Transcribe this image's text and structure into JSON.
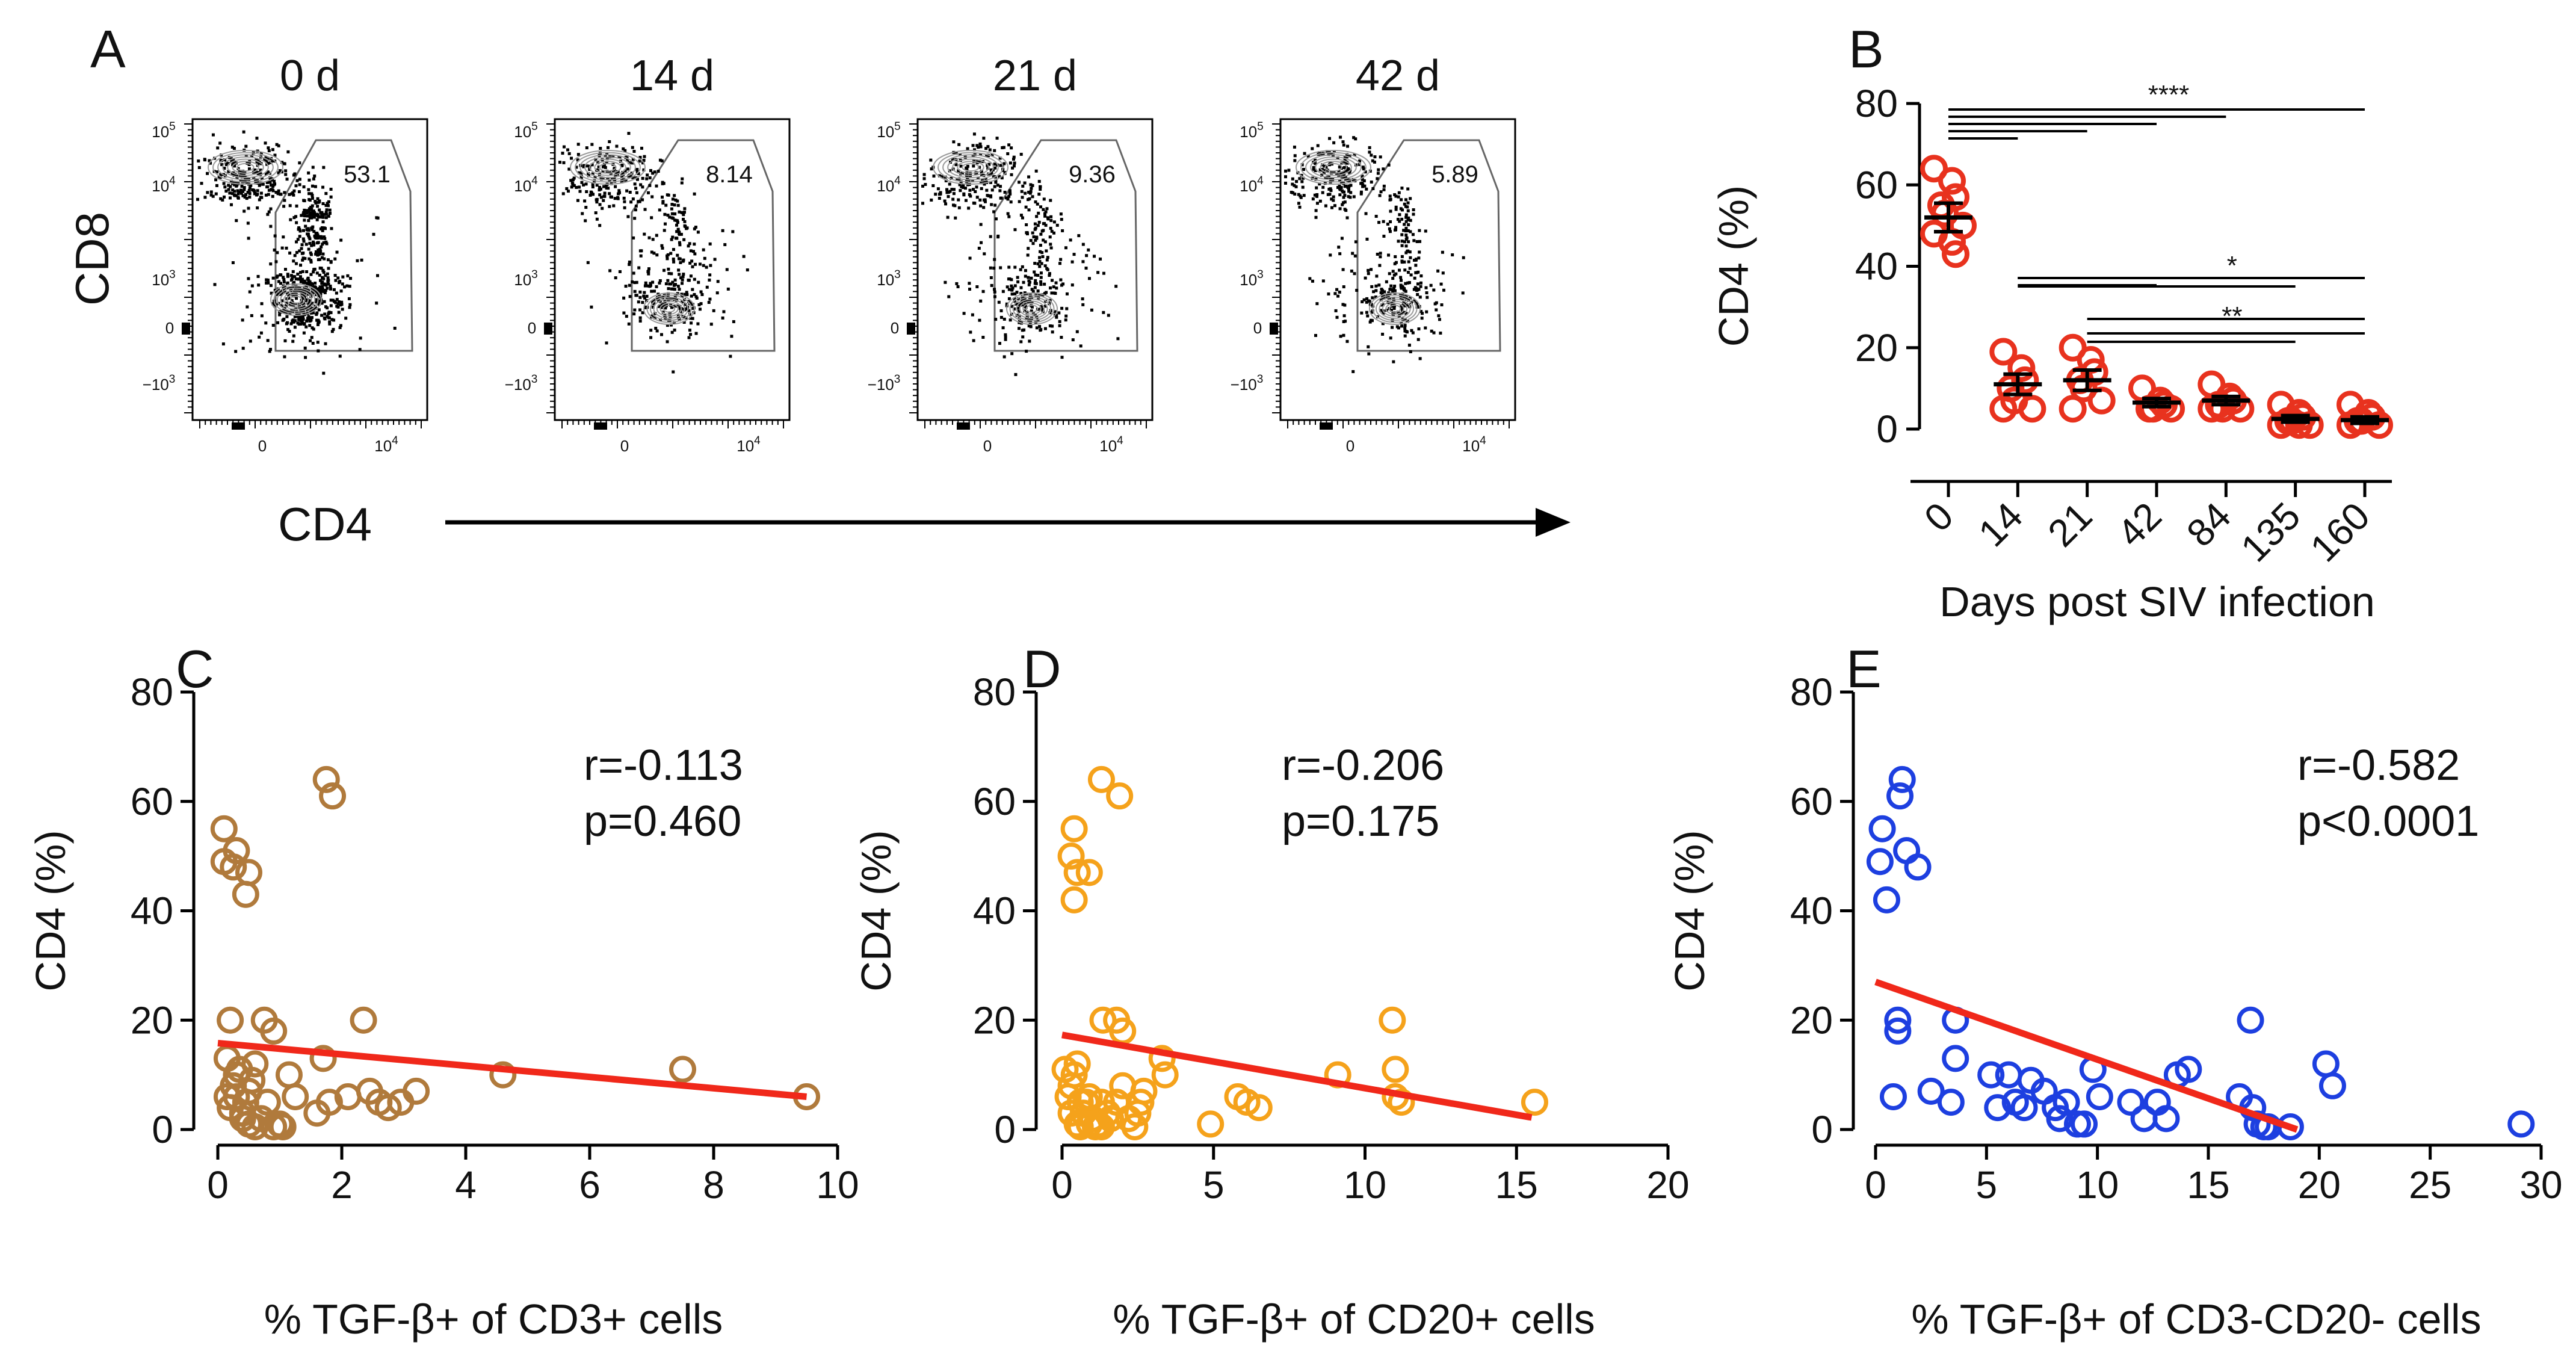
{
  "figure": {
    "letters": [
      "A",
      "B",
      "C",
      "D",
      "E"
    ]
  },
  "flow": {
    "x_label": "CD4",
    "y_label": "CD8",
    "tick_zero": "0",
    "tick_ten": "10",
    "tick_exp": "4",
    "tick_exp_hi": "5",
    "tick_exp_3": "3",
    "tick_neg": "−10",
    "plots": [
      {
        "title": "0 d",
        "gate_value": "53.1"
      },
      {
        "title": "14 d",
        "gate_value": "8.14"
      },
      {
        "title": "21 d",
        "gate_value": "9.36"
      },
      {
        "title": "42 d",
        "gate_value": "5.89"
      }
    ]
  },
  "chart_data": [
    {
      "panel": "B",
      "type": "scatter",
      "xlabel": "Days post SIV infection",
      "ylabel": "CD4 (%)",
      "categories": [
        "0",
        "14",
        "21",
        "42",
        "84",
        "135",
        "160"
      ],
      "ylim": [
        0,
        80
      ],
      "yticks": [
        0,
        20,
        40,
        60,
        80
      ],
      "color": "#e8321e",
      "points": [
        [
          64,
          61,
          57,
          55,
          53,
          50,
          48,
          46,
          43
        ],
        [
          19,
          15,
          12,
          10,
          7,
          5,
          5
        ],
        [
          20,
          17,
          14,
          12,
          10,
          7,
          5
        ],
        [
          10,
          7,
          6,
          5,
          5,
          5
        ],
        [
          11,
          8,
          7,
          6,
          5,
          5,
          5
        ],
        [
          6,
          4,
          3,
          2,
          2,
          1,
          1,
          1
        ],
        [
          6,
          4,
          3,
          2,
          2,
          1,
          1
        ]
      ],
      "means": [
        52,
        11,
        12,
        6.5,
        7,
        2.5,
        2.2
      ],
      "errors": [
        3.5,
        2.5,
        2.5,
        1,
        1,
        0.8,
        0.8
      ],
      "significance": [
        {
          "label": "****",
          "from": 0,
          "to": 6
        },
        {
          "label": "*",
          "from": 1,
          "to": 6
        },
        {
          "label": "**",
          "from": 2,
          "to": 6
        }
      ]
    },
    {
      "panel": "C",
      "type": "scatter",
      "xlabel": "% TGF-β+ of CD3+ cells",
      "ylabel": "CD4 (%)",
      "xlim": [
        0,
        10
      ],
      "xticks": [
        0,
        2,
        4,
        6,
        8,
        10
      ],
      "ylim": [
        0,
        80
      ],
      "yticks": [
        0,
        20,
        40,
        60,
        80
      ],
      "color": "#b07a3c",
      "r": "r=-0.113",
      "p": "p=0.460",
      "fit": {
        "x": [
          0,
          9.5
        ],
        "y": [
          15.8,
          6.0
        ]
      },
      "x": [
        0.1,
        0.25,
        0.5,
        0.1,
        0.3,
        0.45,
        1.75,
        1.85,
        0.2,
        0.75,
        0.9,
        2.35,
        0.15,
        0.25,
        0.3,
        0.35,
        0.4,
        0.45,
        0.5,
        0.55,
        0.6,
        0.7,
        0.8,
        0.9,
        1.0,
        1.05,
        0.2,
        0.3,
        0.4,
        0.5,
        0.6,
        1.15,
        1.25,
        1.6,
        1.8,
        2.1,
        2.45,
        2.6,
        2.75,
        2.95,
        3.2,
        4.6,
        7.5,
        9.5,
        0.15,
        1.7
      ],
      "y": [
        55,
        48,
        47,
        49,
        51,
        43,
        64,
        61,
        20,
        20,
        18,
        20,
        6,
        8,
        10,
        11,
        3,
        5,
        7,
        9,
        12,
        2,
        5,
        0.5,
        1,
        0.5,
        4,
        6,
        2,
        1,
        0.5,
        10,
        6,
        3,
        5,
        6,
        7,
        5,
        4,
        5,
        7,
        10,
        11,
        6,
        13,
        13
      ]
    },
    {
      "panel": "D",
      "type": "scatter",
      "xlabel": "% TGF-β+ of CD20+ cells",
      "ylabel": "CD4 (%)",
      "xlim": [
        0,
        20
      ],
      "xticks": [
        0,
        5,
        10,
        15,
        20
      ],
      "ylim": [
        0,
        80
      ],
      "yticks": [
        0,
        20,
        40,
        60,
        80
      ],
      "color": "#f5a21b",
      "r": "r=-0.206",
      "p": "p=0.175",
      "fit": {
        "x": [
          0,
          15.5
        ],
        "y": [
          17.3,
          2.2
        ]
      },
      "x": [
        0.4,
        0.3,
        0.5,
        0.4,
        0.9,
        1.3,
        1.9,
        1.35,
        1.8,
        2.0,
        2.6,
        2.7,
        3.4,
        3.3,
        0.1,
        0.2,
        0.3,
        0.4,
        0.5,
        0.6,
        0.7,
        0.8,
        0.9,
        1.0,
        1.1,
        1.2,
        1.3,
        1.5,
        1.6,
        1.8,
        2.0,
        2.2,
        2.4,
        2.5,
        0.3,
        0.5,
        0.6,
        0.9,
        1.3,
        4.9,
        5.8,
        6.1,
        6.5,
        9.1,
        10.9,
        11.0,
        11.0,
        11.2,
        15.6
      ],
      "y": [
        55,
        50,
        47,
        42,
        47,
        64,
        61,
        20,
        20,
        18,
        5,
        7,
        10,
        13,
        11,
        6,
        8,
        10,
        12,
        5,
        3,
        5,
        6,
        2,
        0.5,
        1,
        5,
        3,
        2,
        5,
        8,
        2,
        0.5,
        3,
        3,
        1,
        0.5,
        1,
        0.5,
        1,
        6,
        5,
        4,
        10,
        20,
        11,
        6,
        5,
        5
      ]
    },
    {
      "panel": "E",
      "type": "scatter",
      "xlabel": "% TGF-β+ of CD3-CD20- cells",
      "ylabel": "CD4 (%)",
      "xlim": [
        0,
        30
      ],
      "xticks": [
        0,
        5,
        10,
        15,
        20,
        25,
        30
      ],
      "ylim": [
        0,
        80
      ],
      "yticks": [
        0,
        20,
        40,
        60,
        80
      ],
      "color": "#1d3fe0",
      "r": "r=-0.582",
      "p": "p<0.0001",
      "fit": {
        "x": [
          0,
          19
        ],
        "y": [
          27,
          0
        ]
      },
      "x": [
        0.3,
        0.2,
        0.5,
        1.2,
        1.1,
        1.4,
        1.9,
        1.0,
        1.0,
        0.8,
        3.6,
        3.6,
        2.5,
        3.4,
        5.2,
        5.5,
        6.0,
        6.3,
        6.7,
        7.0,
        7.6,
        8.1,
        8.3,
        8.6,
        9.1,
        9.4,
        9.8,
        10.1,
        11.5,
        12.1,
        12.7,
        13.1,
        13.6,
        14.1,
        16.4,
        16.9,
        17.0,
        17.2,
        17.5,
        17.7,
        18.7,
        20.3,
        20.6,
        29.1
      ],
      "y": [
        55,
        49,
        42,
        64,
        61,
        51,
        48,
        20,
        18,
        6,
        20,
        13,
        7,
        5,
        10,
        4,
        10,
        5,
        4,
        9,
        7,
        4,
        2,
        5,
        1,
        1,
        11,
        6,
        5,
        2,
        5,
        2,
        10,
        11,
        6,
        20,
        4,
        1,
        0.5,
        0.5,
        0.5,
        12,
        8,
        1
      ]
    }
  ]
}
